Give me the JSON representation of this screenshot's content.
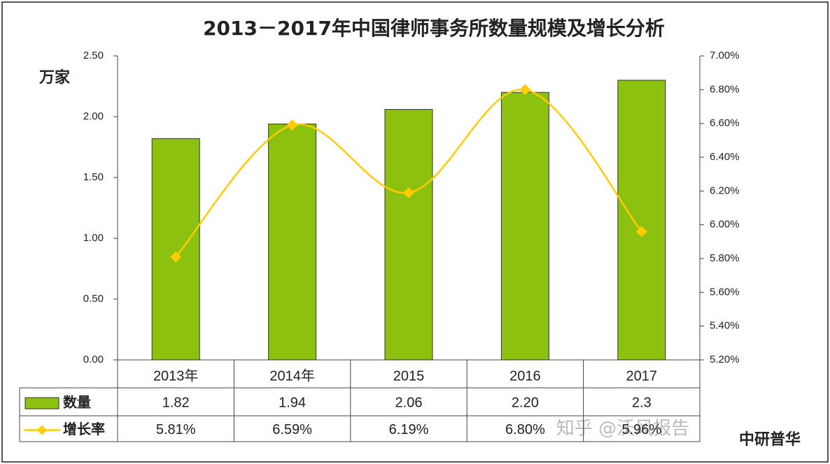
{
  "chart_data": {
    "type": "bar-line",
    "title": "2013－2017年中国律师事务所数量规模及增长分析",
    "y_label": "万家",
    "source": "中研普华",
    "watermark": "知乎 @沃风报告",
    "categories": [
      "2013年",
      "2014年",
      "2015",
      "2016",
      "2017"
    ],
    "series": [
      {
        "name": "数量",
        "type": "bar",
        "color": "#8cc10f",
        "values": [
          1.82,
          1.94,
          2.06,
          2.2,
          2.3
        ],
        "value_labels": [
          "1.82",
          "1.94",
          "2.06",
          "2.20",
          "2.3"
        ]
      },
      {
        "name": "增长率",
        "type": "line",
        "axis": "y2",
        "color": "#ffcc00",
        "values": [
          5.81,
          6.59,
          6.19,
          6.8,
          5.96
        ],
        "value_labels": [
          "5.81%",
          "6.59%",
          "6.19%",
          "6.80%",
          "5.96%"
        ]
      }
    ],
    "ylim": [
      0,
      2.5
    ],
    "yticks": [
      {
        "value": 0,
        "label": "0.00"
      },
      {
        "value": 0.5,
        "label": "0.50"
      },
      {
        "value": 1,
        "label": "1.00"
      },
      {
        "value": 1.5,
        "label": "1.50"
      },
      {
        "value": 2,
        "label": "2.00"
      },
      {
        "value": 2.5,
        "label": "2.50"
      }
    ],
    "y2lim": [
      5.2,
      7.0
    ],
    "y2ticks": [
      {
        "value": 5.2,
        "label": "5.20%"
      },
      {
        "value": 5.4,
        "label": "5.40%"
      },
      {
        "value": 5.6,
        "label": "5.60%"
      },
      {
        "value": 5.8,
        "label": "5.80%"
      },
      {
        "value": 6.0,
        "label": "6.00%"
      },
      {
        "value": 6.2,
        "label": "6.20%"
      },
      {
        "value": 6.4,
        "label": "6.40%"
      },
      {
        "value": 6.6,
        "label": "6.60%"
      },
      {
        "value": 6.8,
        "label": "6.80%"
      },
      {
        "value": 7.0,
        "label": "7.00%"
      }
    ]
  }
}
